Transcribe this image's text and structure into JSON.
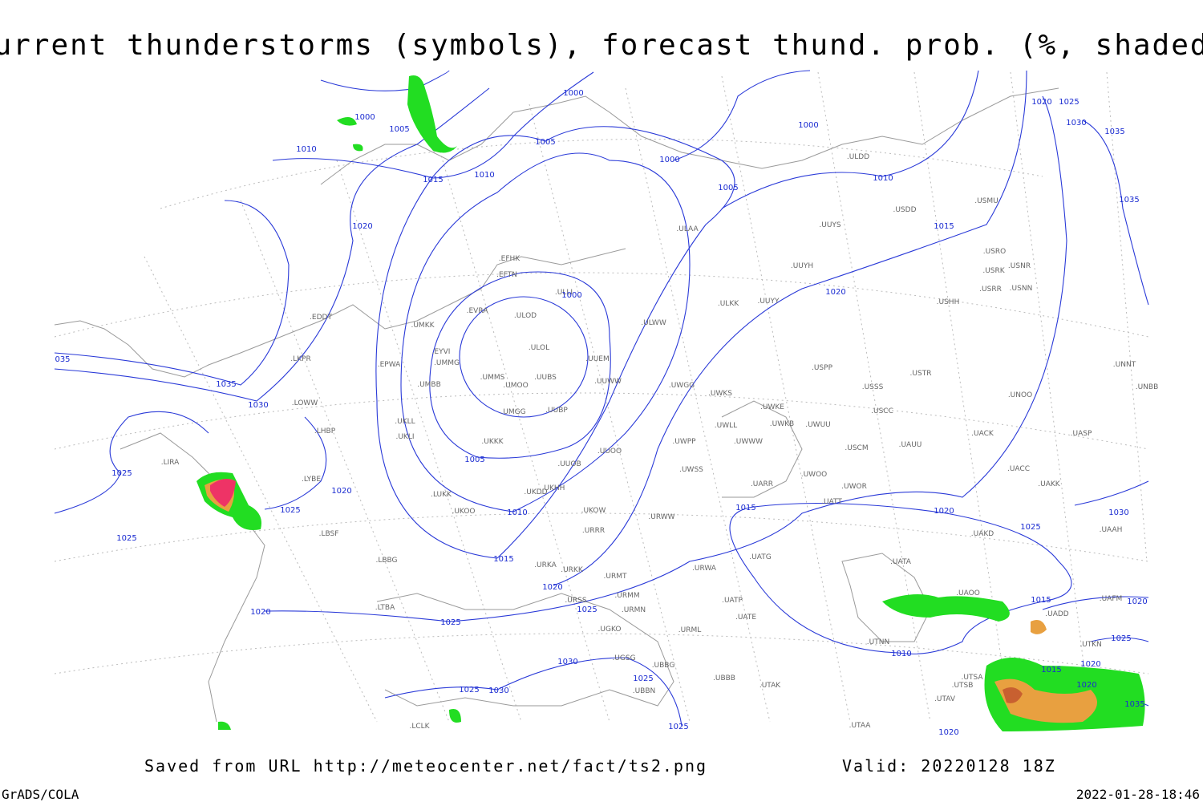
{
  "title": "Current thunderstorms (symbols), forecast thund. prob. (%, shaded)",
  "footer": {
    "source": "Saved from URL http://meteocenter.net/fact/ts2.png",
    "valid": "Valid: 20220128 18Z",
    "software": "GrADS/COLA",
    "timestamp": "2022-01-28-18:46"
  },
  "isobar_labels": [
    "1000",
    "1005",
    "1010",
    "1015",
    "1010",
    "1000",
    "1005",
    "1000",
    "1000",
    "1005",
    "1010",
    "1015",
    "1020",
    "1020",
    "1025",
    "1030",
    "1035",
    "1035",
    "1020",
    "1000",
    "035",
    "1035",
    "1030",
    "1025",
    "1025",
    "1020",
    "1005",
    "1010",
    "1015",
    "1025",
    "1020",
    "1020",
    "1025",
    "1025",
    "1030",
    "1025",
    "1030",
    "1025",
    "1025",
    "1015",
    "1020",
    "1025",
    "1030",
    "1010",
    "1015",
    "1020",
    "1025",
    "1020",
    "1015",
    "1020",
    "1035",
    "1020"
  ],
  "stations": [
    ".EFHK",
    ".EFTN",
    ".ULLI",
    ".ULAA",
    ".ULDD",
    ".USDD",
    ".USMU",
    ".UUYS",
    ".USRO",
    ".USRK",
    ".USNR",
    ".USRR",
    ".USNN",
    ".USHH",
    ".UUYH",
    ".UUYY",
    ".ULKK",
    ".ULWW",
    ".ULOD",
    ".ULOL",
    ".UUEM",
    ".UUWW",
    ".UUBS",
    ".UMMS",
    ".UMOO",
    ".UMGG",
    ".UUBP",
    ".UMMG",
    ".EYVI",
    ".EVRA",
    ".UMKK",
    ".EPWA",
    ".UMBB",
    ".EDDT",
    ".LKPR",
    ".LOWW",
    ".LHBP",
    ".UKLL",
    ".UKLI",
    ".UKKK",
    ".UUOO",
    ".UWPP",
    ".UWWW",
    ".UWLL",
    ".UWKS",
    ".UWGG",
    ".UWKE",
    ".UWKB",
    ".UWUU",
    ".USPP",
    ".USSS",
    ".USTR",
    ".USCC",
    ".USCM",
    ".UAUU",
    ".UACK",
    ".UASP",
    ".UNOO",
    ".UNNT",
    ".UNBB",
    ".UACC",
    ".UAKK",
    ".UAKD",
    ".UAAH",
    ".UWOO",
    ".UWOR",
    ".UATT",
    ".UARR",
    ".UWSS",
    ".URWW",
    ".UKOW",
    ".URRR",
    ".UUOB",
    ".UKHH",
    ".UKDD",
    ".LUKK",
    ".UKOO",
    ".LYBE",
    ".LBSF",
    ".LBBG",
    ".LIRA",
    ".URKA",
    ".URKK",
    ".URMT",
    ".URSS",
    ".URMM",
    ".URMN",
    ".UGKO",
    ".UGSG",
    ".UBBG",
    ".UBBN",
    ".UBBB",
    ".URML",
    ".URWA",
    ".UATG",
    ".UATP",
    ".UATE",
    ".UTAK",
    ".UTAA",
    ".UTAV",
    ".UTSB",
    ".UTSA",
    ".UTNN",
    ".UATA",
    ".UAOO",
    ".UADD",
    ".UTKN",
    ".UAFM",
    ".LTBA",
    ".LCLK"
  ]
}
